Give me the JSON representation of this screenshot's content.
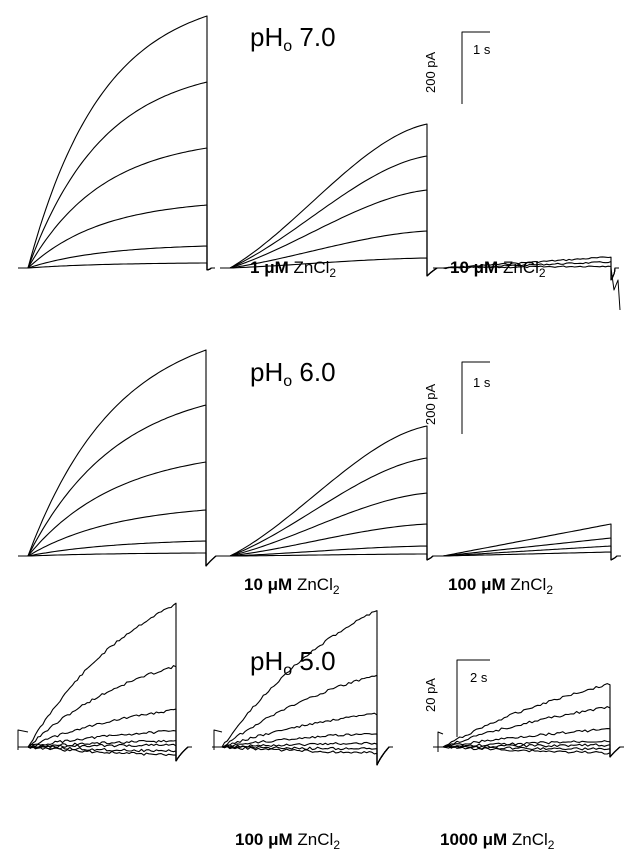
{
  "panels": [
    {
      "ph_base": "pH",
      "ph_sub": "o",
      "ph_value": "7.0",
      "scale_bar": {
        "y_label": "200 pA",
        "x_label": "1 s"
      },
      "conditions": [
        {
          "conc": "1",
          "unit": "μM",
          "chem": "ZnCl",
          "sub": "2"
        },
        {
          "conc": "10",
          "unit": "μM",
          "chem": "ZnCl",
          "sub": "2"
        }
      ]
    },
    {
      "ph_base": "pH",
      "ph_sub": "o",
      "ph_value": "6.0",
      "scale_bar": {
        "y_label": "200 pA",
        "x_label": "1 s"
      },
      "conditions": [
        {
          "conc": "10",
          "unit": "μM",
          "chem": "ZnCl",
          "sub": "2"
        },
        {
          "conc": "100",
          "unit": "μM",
          "chem": "ZnCl",
          "sub": "2"
        }
      ]
    },
    {
      "ph_base": "pH",
      "ph_sub": "o",
      "ph_value": "5.0",
      "scale_bar": {
        "y_label": "20 pA",
        "x_label": "2 s"
      },
      "conditions": [
        {
          "conc": "100",
          "unit": "μM",
          "chem": "ZnCl",
          "sub": "2"
        },
        {
          "conc": "1000",
          "unit": "μM",
          "chem": "ZnCl",
          "sub": "2"
        }
      ]
    }
  ]
}
